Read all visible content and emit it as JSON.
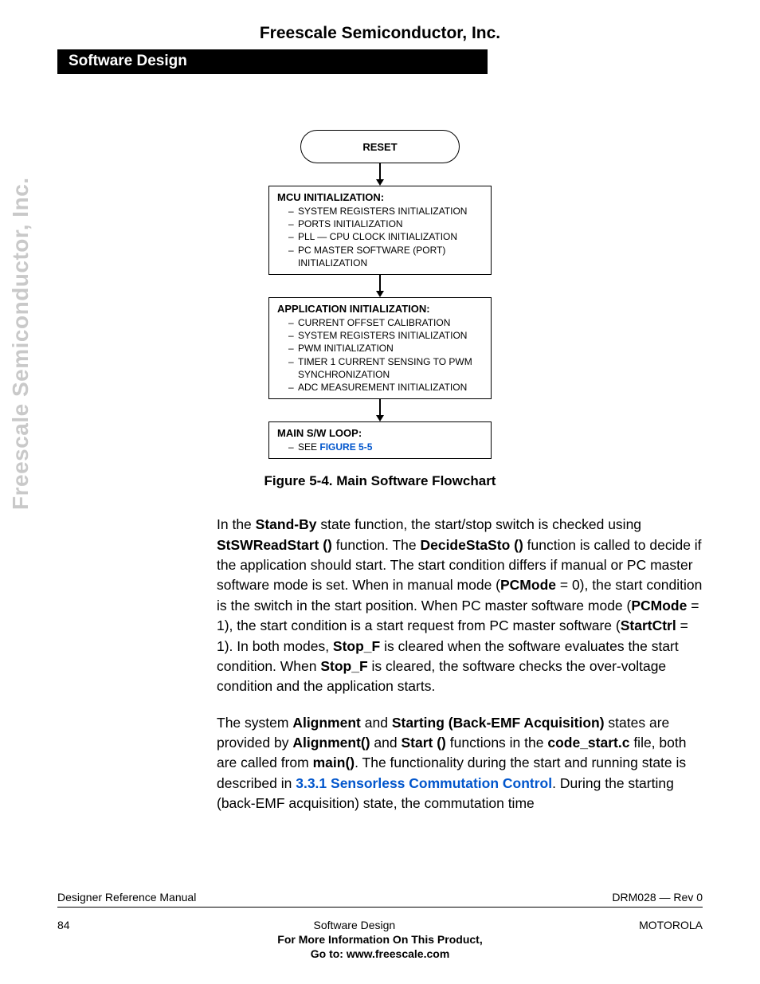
{
  "header": {
    "company": "Freescale Semiconductor, Inc.",
    "section": "Software Design",
    "sideways": "Freescale Semiconductor, Inc."
  },
  "flowchart": {
    "reset": "RESET",
    "mcu": {
      "title": "MCU INITIALIZATION:",
      "items": [
        "SYSTEM REGISTERS INITIALIZATION",
        "PORTS INITIALIZATION",
        "PLL — CPU CLOCK INITIALIZATION",
        "PC MASTER SOFTWARE (PORT) INITIALIZATION"
      ]
    },
    "app": {
      "title": "APPLICATION INITIALIZATION:",
      "items": [
        "CURRENT OFFSET CALIBRATION",
        "SYSTEM REGISTERS INITIALIZATION",
        "PWM INITIALIZATION",
        "TIMER 1 CURRENT SENSING TO PWM SYNCHRONIZATION",
        "ADC MEASUREMENT INITIALIZATION"
      ]
    },
    "loop": {
      "title": "MAIN S/W LOOP:",
      "see": "SEE ",
      "ref": "FIGURE 5-5"
    },
    "caption": "Figure 5-4. Main Software Flowchart"
  },
  "body": {
    "p1_a": "In the ",
    "p1_b": "Stand-By",
    "p1_c": " state function, the start/stop switch is checked using ",
    "p1_d": "StSWReadStart ()",
    "p1_e": " function. The ",
    "p1_f": "DecideStaSto ()",
    "p1_g": " function is called to decide if the application should start. The start condition differs if manual or PC master software mode is set. When in manual mode (",
    "p1_h": "PCMode",
    "p1_i": " = 0), the start condition is the switch in the start position. When PC master software mode (",
    "p1_j": "PCMode",
    "p1_k": " = 1), the start condition is a start request from PC master software (",
    "p1_l": "StartCtrl",
    "p1_m": " = 1). In both modes, ",
    "p1_n": "Stop_F",
    "p1_o": " is cleared when the software evaluates the start condition. When ",
    "p1_p": "Stop_F",
    "p1_q": " is cleared, the software checks the over-voltage condition and the application starts.",
    "p2_a": "The system ",
    "p2_b": "Alignment",
    "p2_c": " and ",
    "p2_d": "Starting (Back-EMF Acquisition)",
    "p2_e": " states are provided by ",
    "p2_f": "Alignment()",
    "p2_g": " and ",
    "p2_h": "Start ()",
    "p2_i": " functions in the ",
    "p2_j": "code_start.c",
    "p2_k": " file, both are called from ",
    "p2_l": "main()",
    "p2_m": ". The functionality during the start and running state is described in ",
    "p2_n": "3.3.1 Sensorless Commutation Control",
    "p2_o": ". During the starting (back-EMF acquisition) state, the commutation time"
  },
  "footer": {
    "left1": "Designer Reference Manual",
    "right1": "DRM028 — Rev 0",
    "left2": "84",
    "center2": "Software Design",
    "right2": "MOTOROLA",
    "bold1": "For More Information On This Product,",
    "bold2": "Go to: www.freescale.com"
  }
}
